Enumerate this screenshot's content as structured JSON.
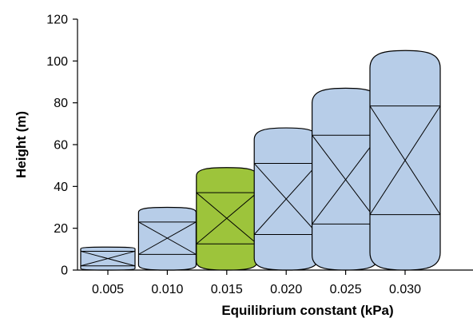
{
  "chart_data": {
    "type": "bar",
    "xlabel": "Equilibrium constant (kPa)",
    "ylabel": "Height (m)",
    "ylim": [
      0,
      120
    ],
    "yticks": [
      0,
      20,
      40,
      60,
      80,
      100,
      120
    ],
    "grid": false,
    "categories": [
      "0.005",
      "0.010",
      "0.015",
      "0.020",
      "0.025",
      "0.030"
    ],
    "values": [
      11,
      30,
      49,
      68,
      87,
      105
    ],
    "section_bounds": [
      [
        2,
        9
      ],
      [
        7.5,
        23
      ],
      [
        12.5,
        37
      ],
      [
        17,
        51
      ],
      [
        22,
        64.5
      ],
      [
        26.5,
        78.5
      ]
    ],
    "colors": {
      "default": "#b7cde8",
      "highlight": "#9dc43b"
    },
    "highlight_index": 2
  }
}
